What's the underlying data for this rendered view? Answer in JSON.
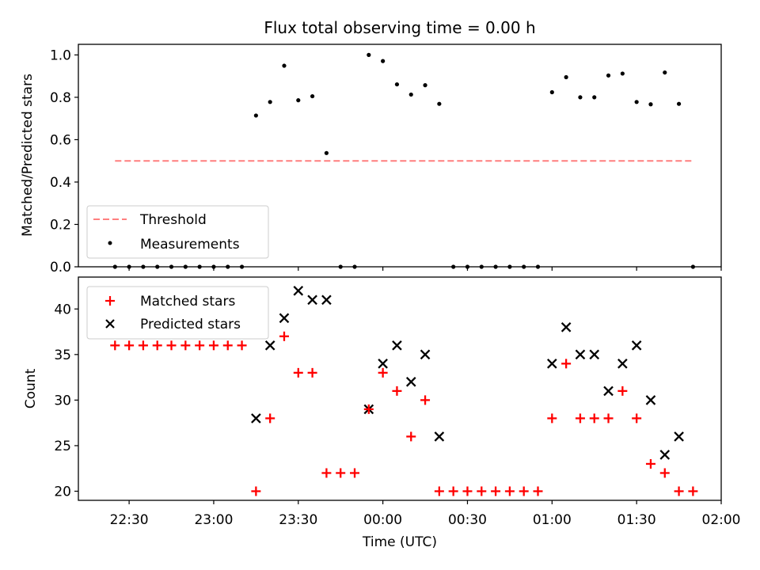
{
  "figure": {
    "title": "Flux total observing time = 0.00 h"
  },
  "chart_data": [
    {
      "type": "scatter",
      "panel": "top",
      "title": "Flux total observing time = 0.00 h",
      "xlabel": "",
      "ylabel": "Matched/Predicted stars",
      "ylim": [
        0.0,
        1.05
      ],
      "yticks": [
        0.0,
        0.2,
        0.4,
        0.6,
        0.8,
        1.0
      ],
      "ytick_labels": [
        "0.0",
        "0.2",
        "0.4",
        "0.6",
        "0.8",
        "1.0"
      ],
      "xlim": [
        "22:12",
        "02:00"
      ],
      "grid": false,
      "legend_position": "lower-left",
      "threshold": {
        "name": "Threshold",
        "value": 0.5,
        "x_range": [
          "22:25",
          "01:50"
        ],
        "color": "#ff7f7f",
        "style": "dashed"
      },
      "series": [
        {
          "name": "Measurements",
          "color": "#000000",
          "marker": "dot",
          "x": [
            "22:25",
            "22:30",
            "22:35",
            "22:40",
            "22:45",
            "22:50",
            "22:55",
            "23:00",
            "23:05",
            "23:10",
            "23:15",
            "23:20",
            "23:25",
            "23:30",
            "23:35",
            "23:40",
            "23:45",
            "23:50",
            "23:55",
            "00:00",
            "00:05",
            "00:10",
            "00:15",
            "00:20",
            "00:25",
            "00:30",
            "00:35",
            "00:40",
            "00:45",
            "00:50",
            "00:55",
            "01:00",
            "01:05",
            "01:10",
            "01:15",
            "01:20",
            "01:25",
            "01:30",
            "01:35",
            "01:40",
            "01:45",
            "01:50"
          ],
          "y": [
            0,
            0,
            0,
            0,
            0,
            0,
            0,
            0,
            0,
            0,
            0.714,
            0.778,
            0.949,
            0.786,
            0.805,
            0.537,
            0,
            0,
            1.0,
            0.971,
            0.861,
            0.813,
            0.857,
            0.769,
            0,
            0,
            0,
            0,
            0,
            0,
            0,
            0.824,
            0.895,
            0.8,
            0.8,
            0.903,
            0.912,
            0.778,
            0.767,
            0.917,
            0.769,
            0
          ]
        }
      ]
    },
    {
      "type": "scatter",
      "panel": "bottom",
      "xlabel": "Time (UTC)",
      "ylabel": "Count",
      "ylim": [
        19,
        43.5
      ],
      "yticks": [
        20,
        25,
        30,
        35,
        40
      ],
      "ytick_labels": [
        "20",
        "25",
        "30",
        "35",
        "40"
      ],
      "xlim": [
        "22:12",
        "02:00"
      ],
      "xticks": [
        "22:30",
        "23:00",
        "23:30",
        "00:00",
        "00:30",
        "01:00",
        "01:30",
        "02:00"
      ],
      "grid": false,
      "legend_position": "upper-left",
      "series": [
        {
          "name": "Matched stars",
          "color": "#ff0000",
          "marker": "plus",
          "x": [
            "22:25",
            "22:30",
            "22:35",
            "22:40",
            "22:45",
            "22:50",
            "22:55",
            "23:00",
            "23:05",
            "23:10",
            "23:15",
            "23:20",
            "23:25",
            "23:30",
            "23:35",
            "23:40",
            "23:45",
            "23:50",
            "23:55",
            "00:00",
            "00:05",
            "00:10",
            "00:15",
            "00:20",
            "00:25",
            "00:30",
            "00:35",
            "00:40",
            "00:45",
            "00:50",
            "00:55",
            "01:00",
            "01:05",
            "01:10",
            "01:15",
            "01:20",
            "01:25",
            "01:30",
            "01:35",
            "01:40",
            "01:45",
            "01:50"
          ],
          "y": [
            36,
            36,
            36,
            36,
            36,
            36,
            36,
            36,
            36,
            36,
            20,
            28,
            37,
            33,
            33,
            22,
            22,
            22,
            29,
            33,
            31,
            26,
            30,
            20,
            20,
            20,
            20,
            20,
            20,
            20,
            20,
            28,
            34,
            28,
            28,
            28,
            31,
            28,
            23,
            22,
            20,
            20
          ]
        },
        {
          "name": "Predicted stars",
          "color": "#000000",
          "marker": "x",
          "x": [
            "23:15",
            "23:20",
            "23:25",
            "23:30",
            "23:35",
            "23:40",
            "23:55",
            "00:00",
            "00:05",
            "00:10",
            "00:15",
            "00:20",
            "01:00",
            "01:05",
            "01:10",
            "01:15",
            "01:20",
            "01:25",
            "01:30",
            "01:35",
            "01:40",
            "01:45"
          ],
          "y": [
            28,
            36,
            39,
            42,
            41,
            41,
            29,
            34,
            36,
            32,
            35,
            26,
            34,
            38,
            35,
            35,
            31,
            34,
            36,
            30,
            24,
            26
          ]
        }
      ]
    }
  ]
}
